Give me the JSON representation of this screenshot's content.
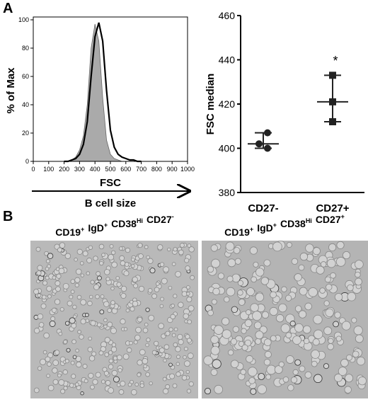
{
  "panels": [
    "A",
    "B"
  ],
  "chart_data": [
    {
      "type": "line",
      "ylabel": "% of Max",
      "xlabel": "FSC",
      "annotation": "B cell size",
      "x": [
        200,
        225,
        250,
        275,
        300,
        325,
        350,
        375,
        400,
        425,
        450,
        475,
        500,
        525,
        550,
        575,
        600,
        625,
        650,
        675,
        700
      ],
      "series": [
        {
          "color": "#aaaaaa",
          "fill": true,
          "values": [
            0,
            0,
            1,
            3,
            8,
            18,
            40,
            80,
            97,
            85,
            45,
            15,
            5,
            2,
            1,
            0,
            0,
            0,
            0,
            0,
            0
          ]
        },
        {
          "color": "#000000",
          "fill": false,
          "values": [
            0,
            0,
            1,
            2,
            5,
            12,
            28,
            60,
            88,
            98,
            85,
            50,
            22,
            10,
            5,
            3,
            2,
            1,
            1,
            0,
            0
          ]
        }
      ],
      "xlim": [
        0,
        1000
      ],
      "xticks": [
        0,
        100,
        200,
        300,
        400,
        500,
        600,
        700,
        800,
        900,
        1000
      ],
      "ylim": [
        0,
        100
      ],
      "yticks": [
        0,
        20,
        40,
        60,
        80,
        100
      ]
    },
    {
      "type": "dot",
      "ylabel": "FSC median",
      "categories": [
        "CD27-",
        "CD27+"
      ],
      "points": [
        [
          400,
          402,
          407
        ],
        [
          412,
          421,
          433
        ]
      ],
      "means": [
        402,
        421
      ],
      "markers": [
        "circle",
        "square"
      ],
      "color": "#222222",
      "annotation": "*",
      "ylim": [
        380,
        460
      ],
      "yticks": [
        380,
        400,
        420,
        440,
        460
      ]
    }
  ],
  "images": [
    {
      "caption": [
        [
          "CD19",
          "+"
        ],
        [
          "IgD",
          "+"
        ],
        [
          "CD38",
          "Hi"
        ],
        [
          "CD27",
          "-"
        ]
      ]
    },
    {
      "caption": [
        [
          "CD19",
          "+"
        ],
        [
          "IgD",
          "+"
        ],
        [
          "CD38",
          "Hi"
        ],
        [
          "CD27",
          "+"
        ]
      ]
    }
  ]
}
